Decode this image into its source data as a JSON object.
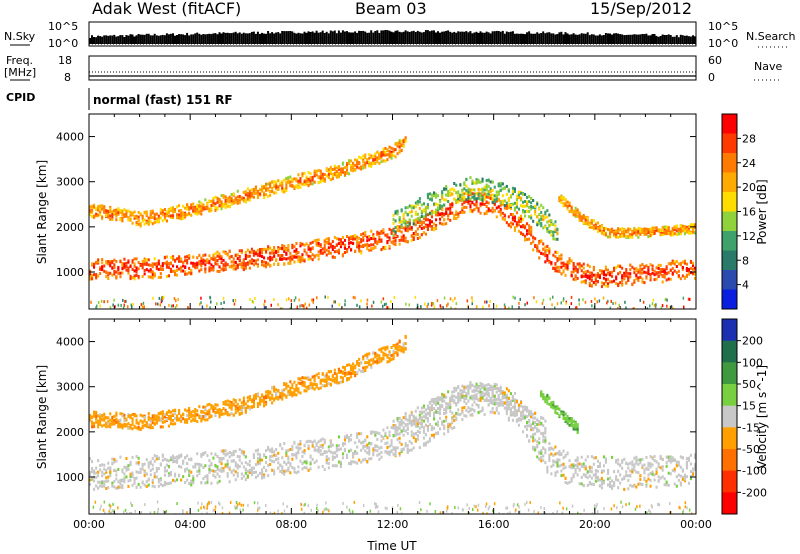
{
  "header": {
    "station": "Adak West (fitACF)",
    "beam": "Beam 03",
    "date": "15/Sep/2012"
  },
  "panels": {
    "nsky": {
      "label": "N.Sky",
      "right_label": "N.Search",
      "left_ticks": [
        "10^5",
        "10^0"
      ],
      "right_ticks": [
        "10^5",
        "10^0"
      ]
    },
    "freq": {
      "label_top": "Freq.",
      "label_unit": "[MHz]",
      "right_label": "Nave",
      "left_ticks": [
        "18",
        "8"
      ],
      "right_ticks": [
        "60",
        "0"
      ]
    },
    "cpid": {
      "label": "CPID",
      "text": "normal (fast) 151 RF"
    }
  },
  "power_colorbar": {
    "label": "Power [dB]",
    "ticks": [
      "28",
      "24",
      "20",
      "16",
      "12",
      "8",
      "4"
    ],
    "colors": [
      "#ff0000",
      "#ff3a00",
      "#ff7a00",
      "#ffaa00",
      "#ffdd00",
      "#8fd23a",
      "#3fa26a",
      "#2a7a6a",
      "#2a4ab0",
      "#0a1ee0"
    ]
  },
  "velocity_colorbar": {
    "label": "Velocity [m s^-1]",
    "ticks": [
      "200",
      "100",
      "50",
      "15",
      "-15",
      "-50",
      "-100",
      "-200"
    ],
    "colors": [
      "#1a30b0",
      "#1f6e4c",
      "#3f9a3f",
      "#78d040",
      "#c8c8c8",
      "#ffa000",
      "#ff7000",
      "#ff3000",
      "#ff0000"
    ]
  },
  "chart_data": [
    {
      "type": "heatmap",
      "name": "power",
      "xlabel": "",
      "ylabel": "Slant Range [km]",
      "xlim": [
        0,
        24
      ],
      "ylim": [
        180,
        4500
      ],
      "yticks": [
        1000,
        2000,
        3000,
        4000
      ],
      "scale_label": "Power [dB]",
      "scale_range": [
        0,
        30
      ],
      "bands": [
        {
          "label": "lower band",
          "points": [
            [
              0,
              1100
            ],
            [
              2,
              1100
            ],
            [
              4,
              1200
            ],
            [
              6,
              1300
            ],
            [
              8,
              1450
            ],
            [
              10,
              1600
            ],
            [
              12,
              1800
            ],
            [
              13,
              2000
            ],
            [
              14,
              2300
            ],
            [
              15,
              2600
            ],
            [
              16,
              2500
            ],
            [
              17,
              2100
            ],
            [
              18,
              1400
            ],
            [
              19,
              1100
            ],
            [
              20,
              900
            ],
            [
              22,
              1000
            ],
            [
              24,
              1100
            ]
          ],
          "width": 450,
          "power": 28
        },
        {
          "label": "upper band",
          "points": [
            [
              0,
              2400
            ],
            [
              2,
              2200
            ],
            [
              4,
              2400
            ],
            [
              6,
              2700
            ],
            [
              8,
              3000
            ],
            [
              10,
              3300
            ],
            [
              11,
              3500
            ],
            [
              12,
              3700
            ],
            [
              12.5,
              3900
            ]
          ],
          "width": 300,
          "power": 24
        },
        {
          "label": "arc",
          "points": [
            [
              12,
              2100
            ],
            [
              13,
              2400
            ],
            [
              14,
              2700
            ],
            [
              15,
              2900
            ],
            [
              16,
              2800
            ],
            [
              17,
              2600
            ],
            [
              18,
              2200
            ],
            [
              18.5,
              1900
            ]
          ],
          "width": 500,
          "power": 16
        },
        {
          "label": "late band",
          "points": [
            [
              18.5,
              2700
            ],
            [
              19.5,
              2200
            ],
            [
              20.5,
              1900
            ],
            [
              22,
              1900
            ],
            [
              24,
              2000
            ]
          ],
          "width": 200,
          "power": 24
        }
      ]
    },
    {
      "type": "heatmap",
      "name": "velocity",
      "xlabel": "Time UT",
      "ylabel": "Slant Range [km]",
      "xlim": [
        0,
        24
      ],
      "ylim": [
        180,
        4500
      ],
      "yticks": [
        1000,
        2000,
        3000,
        4000
      ],
      "xticks": [
        "00:00",
        "04:00",
        "08:00",
        "12:00",
        "16:00",
        "20:00",
        "00:00"
      ],
      "scale_label": "Velocity [m s^-1]",
      "scale_range": [
        -200,
        200
      ],
      "bands": [
        {
          "label": "ground scatter",
          "points": [
            [
              0,
              1100
            ],
            [
              2,
              1150
            ],
            [
              4,
              1200
            ],
            [
              6,
              1300
            ],
            [
              8,
              1450
            ],
            [
              10,
              1600
            ],
            [
              12,
              1800
            ],
            [
              13,
              2000
            ],
            [
              14,
              2300
            ],
            [
              15,
              2700
            ],
            [
              16,
              2800
            ],
            [
              17,
              2500
            ],
            [
              18,
              1500
            ],
            [
              19,
              1200
            ],
            [
              21,
              1100
            ],
            [
              24,
              1200
            ]
          ],
          "width": 700,
          "velocity": 0
        },
        {
          "label": "upper",
          "points": [
            [
              0,
              2300
            ],
            [
              2,
              2250
            ],
            [
              4,
              2400
            ],
            [
              6,
              2600
            ],
            [
              8,
              3000
            ],
            [
              10,
              3300
            ],
            [
              11,
              3600
            ],
            [
              12,
              3800
            ],
            [
              12.5,
              4000
            ]
          ],
          "width": 350,
          "velocity": -50
        },
        {
          "label": "arc",
          "points": [
            [
              12,
              2100
            ],
            [
              13,
              2400
            ],
            [
              14,
              2700
            ],
            [
              15,
              2950
            ],
            [
              16,
              2850
            ],
            [
              17,
              2500
            ],
            [
              18,
              2100
            ]
          ],
          "width": 400,
          "velocity": 0
        },
        {
          "label": "green streak",
          "points": [
            [
              17.8,
              2900
            ],
            [
              18.5,
              2500
            ],
            [
              19.3,
              2100
            ]
          ],
          "width": 200,
          "velocity": 60
        }
      ]
    }
  ]
}
